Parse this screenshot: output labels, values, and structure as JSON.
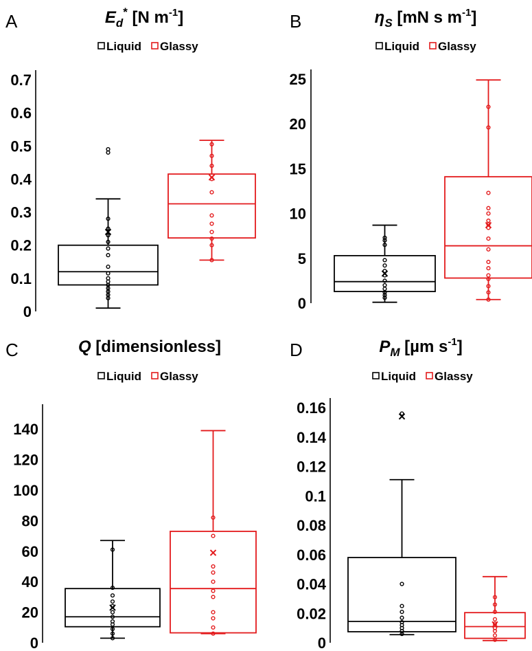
{
  "chart_data": [
    {
      "type": "box",
      "panel": "A",
      "title_main": "E",
      "title_sub": "d",
      "title_sup": "*",
      "title_rest": " [N m",
      "title_exp": "-1",
      "title_end": "]",
      "legend": [
        "Liquid",
        "Glassy"
      ],
      "ylim": [
        0,
        0.7
      ],
      "yticks": [
        "0",
        "0.1",
        "0.2",
        "0.3",
        "0.4",
        "0.5",
        "0.6",
        "0.7"
      ],
      "ytick_values": [
        0,
        0.1,
        0.2,
        0.3,
        0.4,
        0.5,
        0.6,
        0.7
      ],
      "series": [
        {
          "name": "Liquid",
          "color": "#000000",
          "min": 0.01,
          "q1": 0.08,
          "median": 0.12,
          "q3": 0.2,
          "max": 0.34,
          "mean": 0.24,
          "points": [
            0.04,
            0.05,
            0.06,
            0.07,
            0.08,
            0.09,
            0.1,
            0.115,
            0.135,
            0.17,
            0.19,
            0.21,
            0.23,
            0.25,
            0.28,
            0.48,
            0.49
          ]
        },
        {
          "name": "Glassy",
          "color": "#e31a1c",
          "min": 0.155,
          "q1": 0.222,
          "median": 0.325,
          "q3": 0.415,
          "max": 0.517,
          "mean": 0.405,
          "points": [
            0.155,
            0.2,
            0.22,
            0.24,
            0.265,
            0.29,
            0.36,
            0.4,
            0.44,
            0.47,
            0.505
          ]
        }
      ]
    },
    {
      "type": "box",
      "panel": "B",
      "title_main": "η",
      "title_sub": "S",
      "title_sup": "",
      "title_rest": " [mN s m",
      "title_exp": "-1",
      "title_end": "]",
      "legend": [
        "Liquid",
        "Glassy"
      ],
      "ylim": [
        0,
        25
      ],
      "yticks": [
        "0",
        "5",
        "10",
        "15",
        "20",
        "25"
      ],
      "ytick_values": [
        0,
        5,
        10,
        15,
        20,
        25
      ],
      "series": [
        {
          "name": "Liquid",
          "color": "#000000",
          "min": 0.1,
          "q1": 1.3,
          "median": 2.4,
          "q3": 5.3,
          "max": 8.7,
          "mean": 3.3,
          "points": [
            0.6,
            0.9,
            1.2,
            1.6,
            2.0,
            2.5,
            3.1,
            3.6,
            4.2,
            4.8,
            6.5,
            7.0,
            7.3
          ]
        },
        {
          "name": "Glassy",
          "color": "#e31a1c",
          "min": 0.4,
          "q1": 2.8,
          "median": 6.4,
          "q3": 14.1,
          "max": 24.9,
          "mean": 8.7,
          "points": [
            0.4,
            1.2,
            1.9,
            2.7,
            3.1,
            3.9,
            4.6,
            6.0,
            7.2,
            8.4,
            8.8,
            9.2,
            10.0,
            10.6,
            12.3,
            19.6,
            21.9
          ]
        }
      ]
    },
    {
      "type": "box",
      "panel": "C",
      "title_main": "Q",
      "title_sub": "",
      "title_sup": "",
      "title_rest": " [dimensionless]",
      "title_exp": "",
      "title_end": "",
      "legend": [
        "Liquid",
        "Glassy"
      ],
      "ylim": [
        0,
        150
      ],
      "yticks": [
        "0",
        "20",
        "40",
        "60",
        "80",
        "100",
        "120",
        "140"
      ],
      "ytick_values": [
        0,
        20,
        40,
        60,
        80,
        100,
        120,
        140
      ],
      "series": [
        {
          "name": "Liquid",
          "color": "#000000",
          "min": 3,
          "q1": 10.5,
          "median": 17,
          "q3": 35.5,
          "max": 67,
          "mean": 23,
          "points": [
            3,
            6,
            9,
            12,
            14,
            17,
            20,
            24,
            27,
            31,
            36,
            61
          ]
        },
        {
          "name": "Glassy",
          "color": "#e31a1c",
          "min": 6,
          "q1": 6.5,
          "median": 35.5,
          "q3": 73,
          "max": 139,
          "mean": 59,
          "points": [
            6,
            10,
            16,
            20,
            30,
            34,
            40,
            46,
            50,
            70,
            82
          ]
        }
      ]
    },
    {
      "type": "box",
      "panel": "D",
      "title_main": "P",
      "title_sub": "M",
      "title_sup": "",
      "title_rest": " [µm s",
      "title_exp": "-1",
      "title_end": "]",
      "legend": [
        "Liquid",
        "Glassy"
      ],
      "ylim": [
        0,
        0.16
      ],
      "yticks": [
        "0",
        "0.02",
        "0.04",
        "0.06",
        "0.08",
        "0.1",
        "0.12",
        "0.14",
        "0.16"
      ],
      "ytick_values": [
        0,
        0.02,
        0.04,
        0.06,
        0.08,
        0.1,
        0.12,
        0.14,
        0.16
      ],
      "series": [
        {
          "name": "Liquid",
          "color": "#000000",
          "min": 0.0055,
          "q1": 0.0075,
          "median": 0.0145,
          "q3": 0.058,
          "max": 0.111,
          "mean": 0.154,
          "points": [
            0.006,
            0.008,
            0.01,
            0.012,
            0.014,
            0.017,
            0.021,
            0.025,
            0.04,
            0.156
          ]
        },
        {
          "name": "Glassy",
          "color": "#e31a1c",
          "min": 0.0015,
          "q1": 0.003,
          "median": 0.011,
          "q3": 0.0205,
          "max": 0.045,
          "mean": 0.0125,
          "points": [
            0.002,
            0.005,
            0.008,
            0.01,
            0.013,
            0.016,
            0.021,
            0.026,
            0.031
          ]
        }
      ]
    }
  ]
}
